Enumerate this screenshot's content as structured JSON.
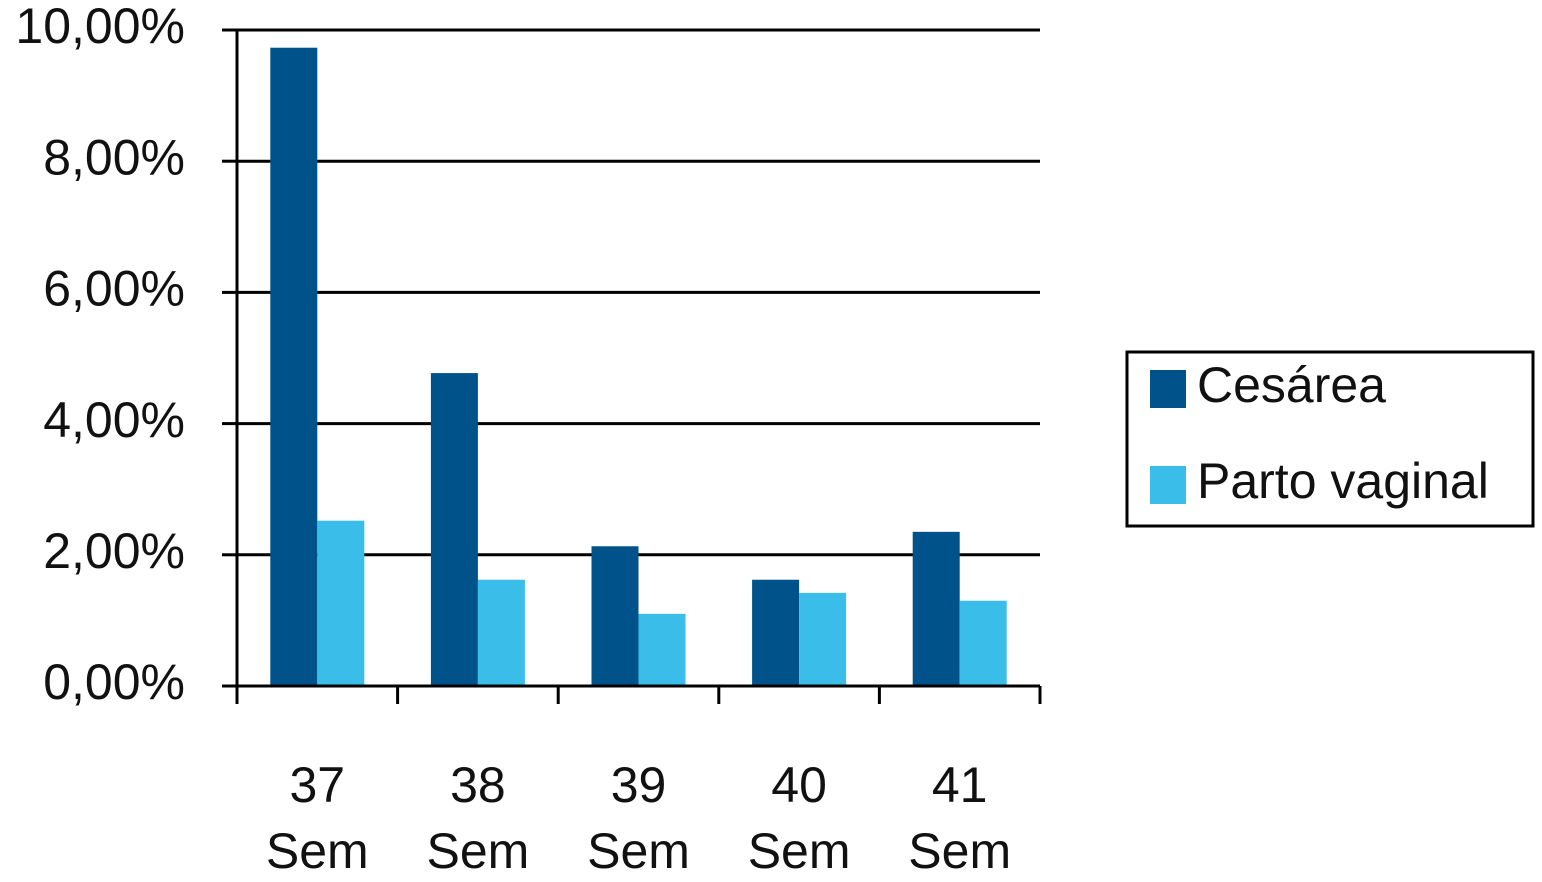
{
  "chart_data": {
    "type": "bar",
    "categories": [
      "37 Sem",
      "38 Sem",
      "39 Sem",
      "40 Sem",
      "41 Sem"
    ],
    "series": [
      {
        "name": "Cesárea",
        "color": "#00538a",
        "values": [
          9.73,
          4.77,
          2.13,
          1.62,
          2.35
        ]
      },
      {
        "name": "Parto vaginal",
        "color": "#3bbdea",
        "values": [
          2.52,
          1.62,
          1.1,
          1.42,
          1.3
        ]
      }
    ],
    "ylim": [
      0,
      10
    ],
    "yticks": [
      {
        "value": 0,
        "label": "0,00%"
      },
      {
        "value": 2,
        "label": "2,00%"
      },
      {
        "value": 4,
        "label": "4,00%"
      },
      {
        "value": 6,
        "label": "6,00%"
      },
      {
        "value": 8,
        "label": "8,00%"
      },
      {
        "value": 10,
        "label": "10,00%"
      }
    ],
    "grid": true,
    "legend": "right"
  }
}
